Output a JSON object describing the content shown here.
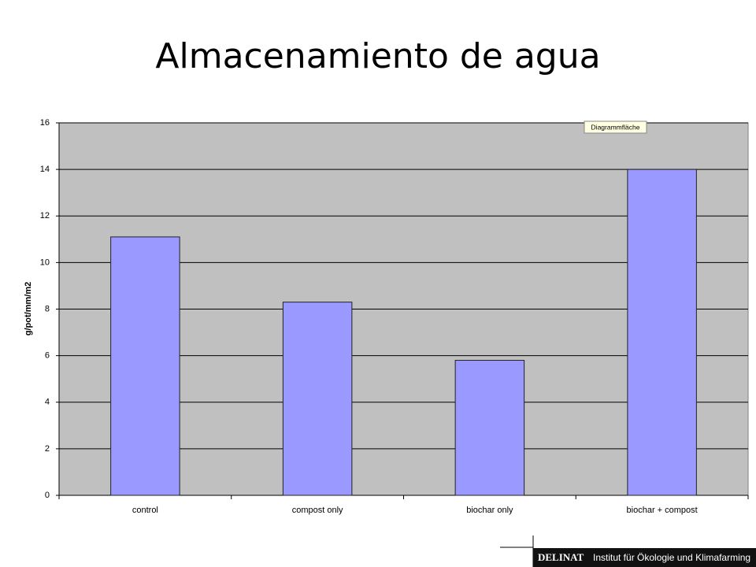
{
  "chart_data": {
    "type": "bar",
    "title": "Almacenamiento de agua",
    "y_label": "g/pot/mm/m2",
    "annotation": "Diagrammfläche",
    "categories": [
      "control",
      "compost only",
      "biochar only",
      "biochar + compost"
    ],
    "values": [
      11.1,
      8.3,
      5.8,
      14.0
    ],
    "color": "#9999ff",
    "ylim": [
      0,
      16
    ],
    "yticks": [
      0,
      2,
      4,
      6,
      8,
      10,
      12,
      14,
      16
    ],
    "grid": true
  },
  "footer": {
    "brand": "DELINAT",
    "text": "Institut für Ökologie und Klimafarming"
  }
}
